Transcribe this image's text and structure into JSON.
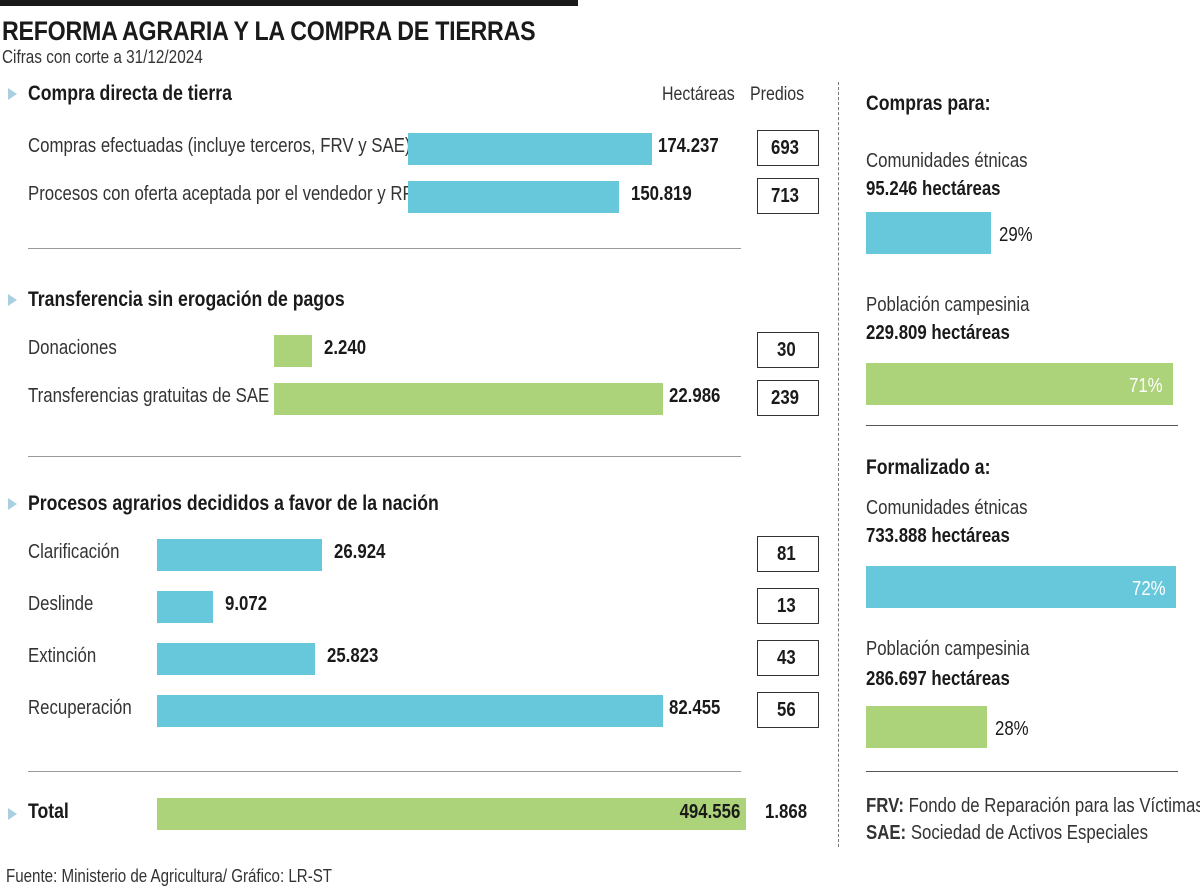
{
  "title": "REFORMA AGRARIA Y LA COMPRA DE TIERRAS",
  "subtitle": "Cifras con corte a 31/12/2024",
  "columns": {
    "hectareas": "Hectáreas",
    "predios": "Predios"
  },
  "colors": {
    "blue": "#67c8dc",
    "green": "#acd27a",
    "arrow": "#a9cfe0"
  },
  "chart_data": {
    "type": "bar",
    "title": "REFORMA AGRARIA Y LA COMPRA DE TIERRAS",
    "subtitle": "Cifras con corte a 31/12/2024",
    "xlabel": "Hectáreas",
    "ylabel": "",
    "sections": [
      {
        "name": "Compra directa de tierra",
        "color": "#67c8dc",
        "rows": [
          {
            "label": "Compras efectuadas (incluye terceros, FRV y SAE)",
            "hectareas": 174237,
            "hectareas_label": "174.237",
            "predios": "693"
          },
          {
            "label": "Procesos con oferta aceptada por el vendedor y RP",
            "hectareas": 150819,
            "hectareas_label": "150.819",
            "predios": "713"
          }
        ]
      },
      {
        "name": "Transferencia sin erogación de pagos",
        "color": "#acd27a",
        "rows": [
          {
            "label": "Donaciones",
            "hectareas": 2240,
            "hectareas_label": "2.240",
            "predios": "30"
          },
          {
            "label": "Transferencias gratuitas de SAE",
            "hectareas": 22986,
            "hectareas_label": "22.986",
            "predios": "239"
          }
        ]
      },
      {
        "name": "Procesos agrarios decididos a favor de la nación",
        "color": "#67c8dc",
        "rows": [
          {
            "label": "Clarificación",
            "hectareas": 26924,
            "hectareas_label": "26.924",
            "predios": "81"
          },
          {
            "label": "Deslinde",
            "hectareas": 9072,
            "hectareas_label": "9.072",
            "predios": "13"
          },
          {
            "label": "Extinción",
            "hectareas": 25823,
            "hectareas_label": "25.823",
            "predios": "43"
          },
          {
            "label": "Recuperación",
            "hectareas": 82455,
            "hectareas_label": "82.455",
            "predios": "56"
          }
        ]
      }
    ],
    "total": {
      "label": "Total",
      "hectareas": 494556,
      "hectareas_label": "494.556",
      "predios": "1.868"
    },
    "side_panels": [
      {
        "title": "Compras para:",
        "items": [
          {
            "label": "Comunidades étnicas",
            "value_label": "95.246 hectáreas",
            "hectareas": 95246,
            "percent": 29,
            "percent_label": "29%",
            "color": "#67c8dc"
          },
          {
            "label": "Población campesinia",
            "value_label": "229.809 hectáreas",
            "hectareas": 229809,
            "percent": 71,
            "percent_label": "71%",
            "color": "#acd27a"
          }
        ]
      },
      {
        "title": "Formalizado a:",
        "items": [
          {
            "label": "Comunidades étnicas",
            "value_label": "733.888 hectáreas",
            "hectareas": 733888,
            "percent": 72,
            "percent_label": "72%",
            "color": "#67c8dc"
          },
          {
            "label": "Población campesinia",
            "value_label": "286.697 hectáreas",
            "hectareas": 286697,
            "percent": 28,
            "percent_label": "28%",
            "color": "#acd27a"
          }
        ]
      }
    ]
  },
  "glossary": [
    {
      "abbr": "FRV:",
      "text": " Fondo de Reparación para las Víctimas"
    },
    {
      "abbr": "SAE:",
      "text": " Sociedad de Activos Especiales"
    }
  ],
  "source": "Fuente: Ministerio de Agricultura/ Gráfico: LR-ST"
}
